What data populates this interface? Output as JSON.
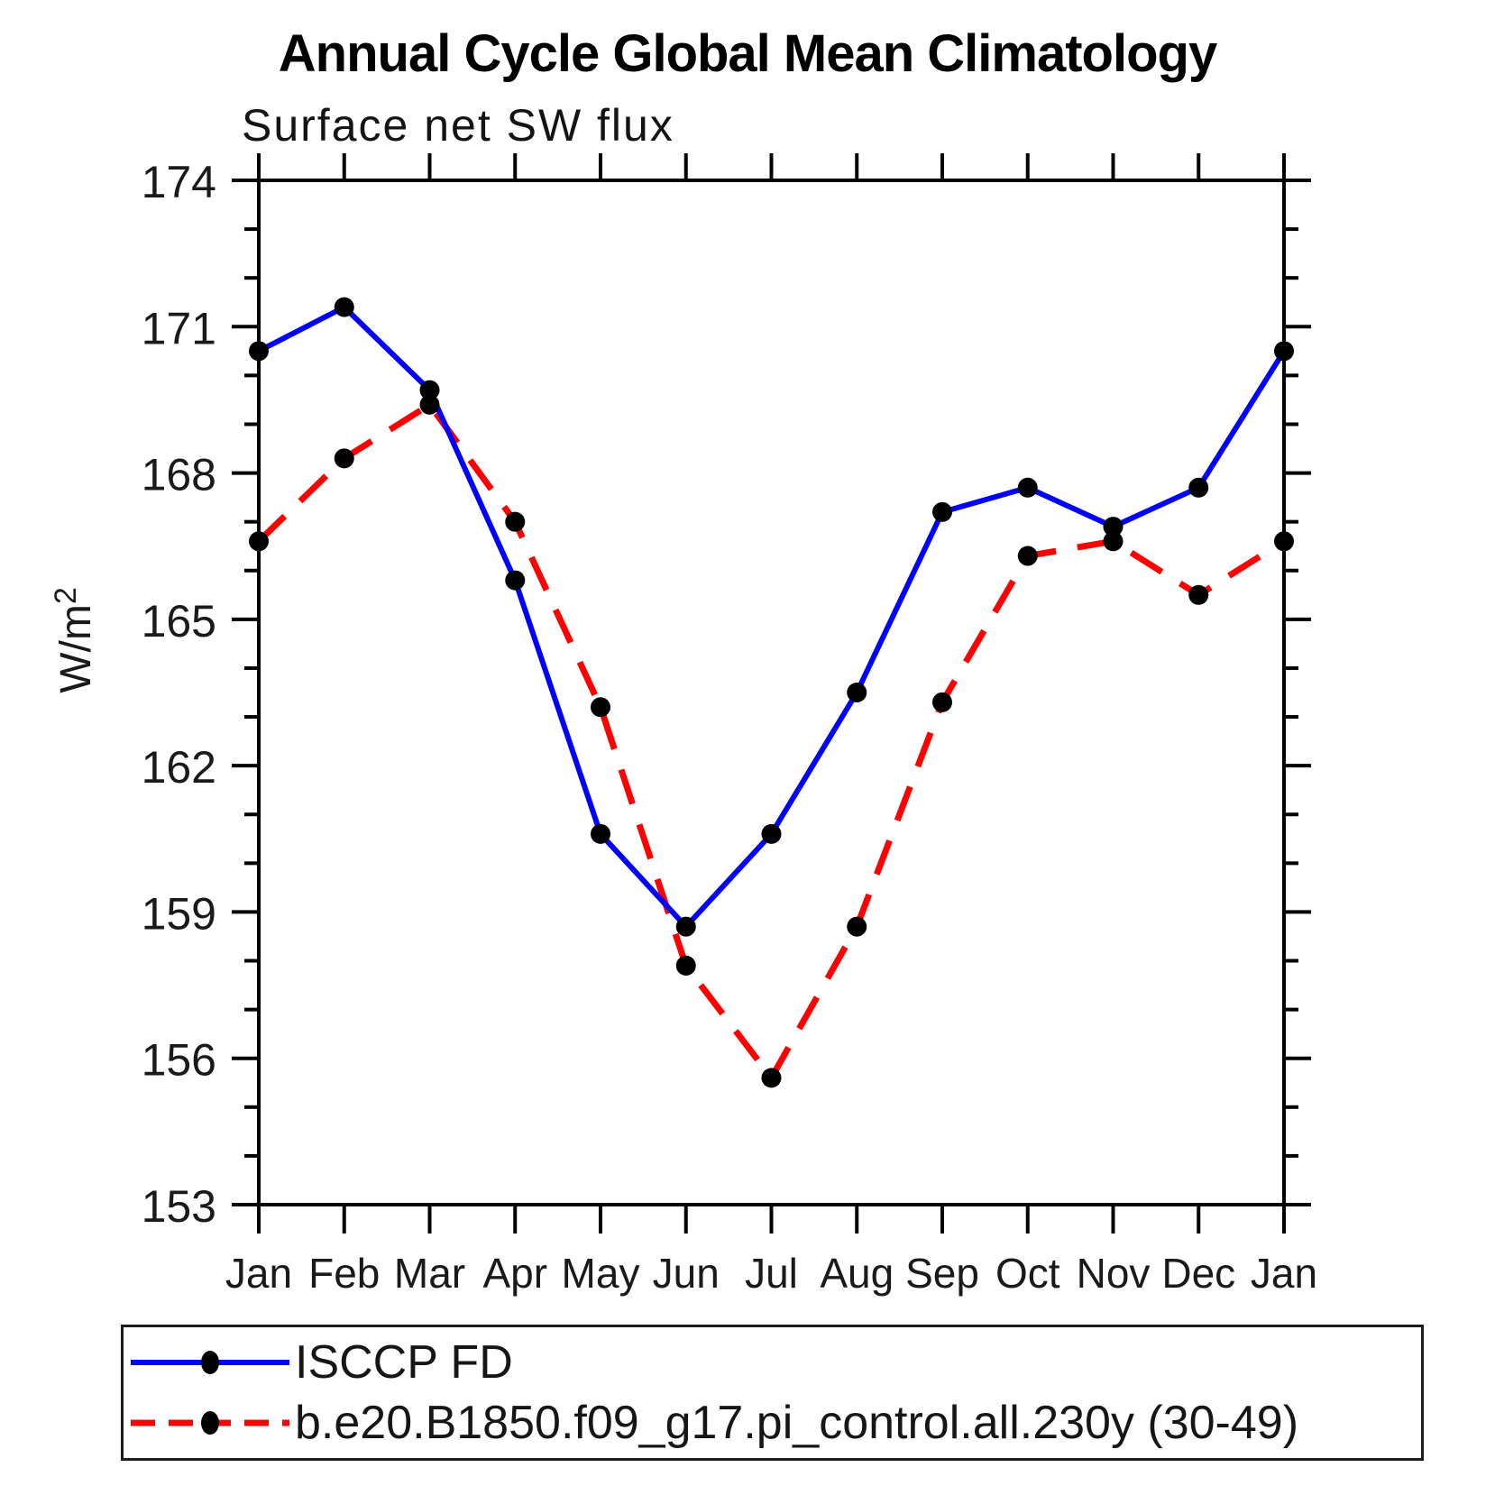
{
  "title": "Annual Cycle Global Mean Climatology",
  "subtitle": "Surface net SW flux",
  "colors": {
    "series_blue": "#0000ff",
    "series_red": "#ff0000",
    "marker": "#000000",
    "axis": "#000000"
  },
  "chart_data": {
    "type": "line",
    "title": "Annual Cycle Global Mean Climatology",
    "subtitle": "Surface net SW flux",
    "ylabel_base": "W/m",
    "ylabel_sup": "2",
    "categories": [
      "Jan",
      "Feb",
      "Mar",
      "Apr",
      "May",
      "Jun",
      "Jul",
      "Aug",
      "Sep",
      "Oct",
      "Nov",
      "Dec",
      "Jan"
    ],
    "ylim": [
      153,
      174
    ],
    "ytick_major_step": 3,
    "ytick_minor_step": 1,
    "ytick_labels": [
      "153",
      "156",
      "159",
      "162",
      "165",
      "168",
      "171",
      "174"
    ],
    "grid": false,
    "legend_position": "bottom",
    "series": [
      {
        "name": "ISCCP FD",
        "style": "solid",
        "color": "#0000ff",
        "values": [
          170.5,
          171.4,
          169.7,
          165.8,
          160.6,
          158.7,
          160.6,
          163.5,
          167.2,
          167.7,
          166.9,
          167.7,
          170.5
        ]
      },
      {
        "name": "b.e20.B1850.f09_g17.pi_control.all.230y (30-49)",
        "style": "dashed",
        "color": "#ff0000",
        "values": [
          166.6,
          168.3,
          169.4,
          167.0,
          163.2,
          157.9,
          155.6,
          158.7,
          163.3,
          166.3,
          166.6,
          165.5,
          166.6
        ]
      }
    ]
  }
}
